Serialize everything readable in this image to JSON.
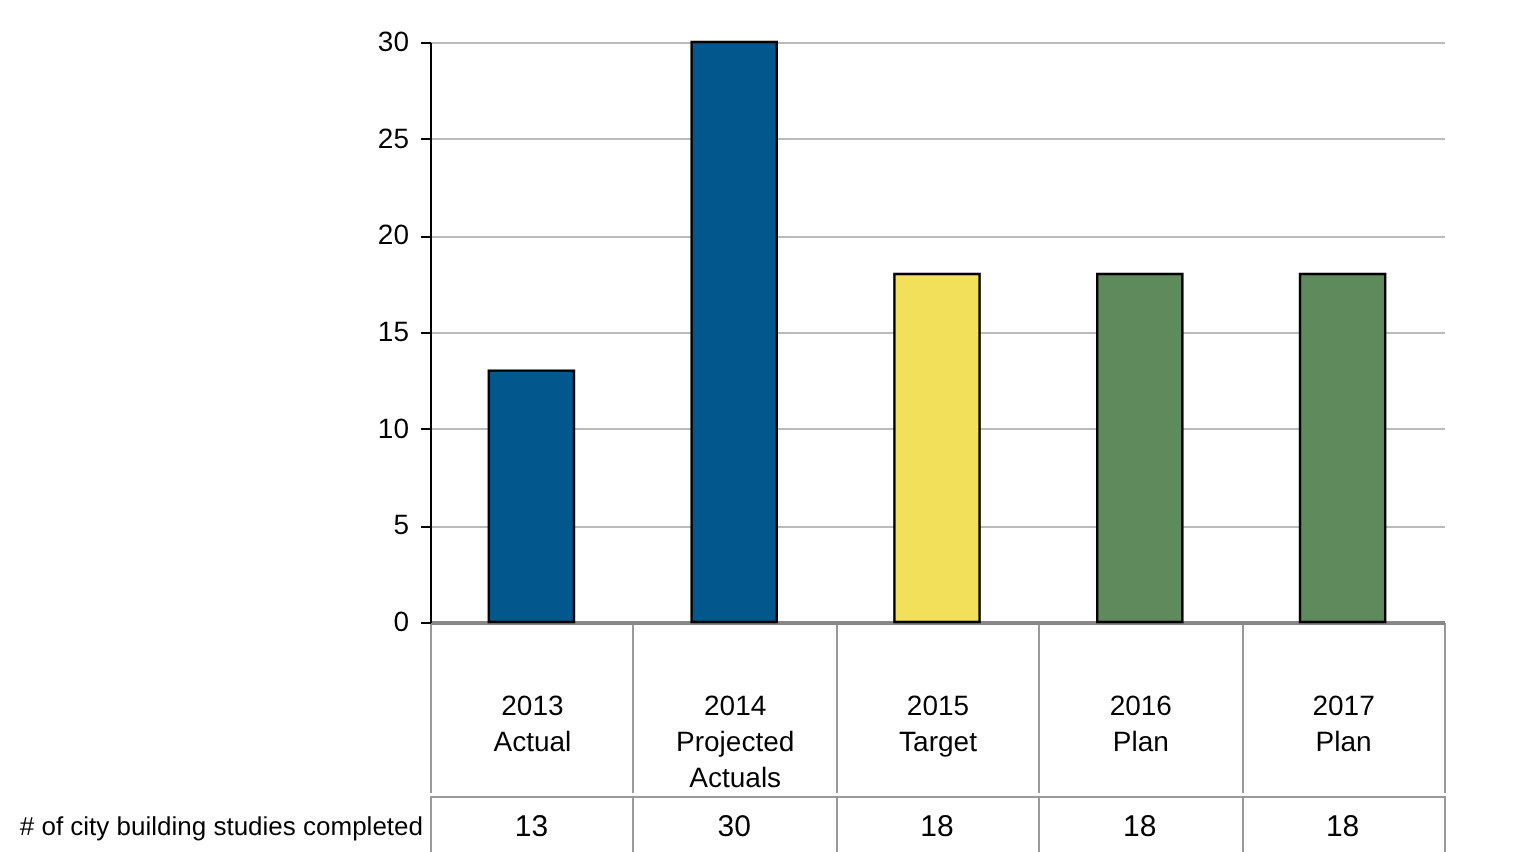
{
  "chart_data": {
    "type": "bar",
    "categories": [
      "2013 Actual",
      "2014 Projected Actuals",
      "2015 Target",
      "2016 Plan",
      "2017 Plan"
    ],
    "series": [
      {
        "name": "# of city building studies completed",
        "values": [
          13,
          30,
          18,
          18,
          18
        ],
        "colors": [
          "#02578c",
          "#02578c",
          "#f2e05a",
          "#5f8a5c",
          "#5f8a5c"
        ]
      }
    ],
    "ylim": [
      0,
      30
    ],
    "yticks": [
      0,
      5,
      10,
      15,
      20,
      25,
      30
    ],
    "grid": "y",
    "data_labels": true
  }
}
